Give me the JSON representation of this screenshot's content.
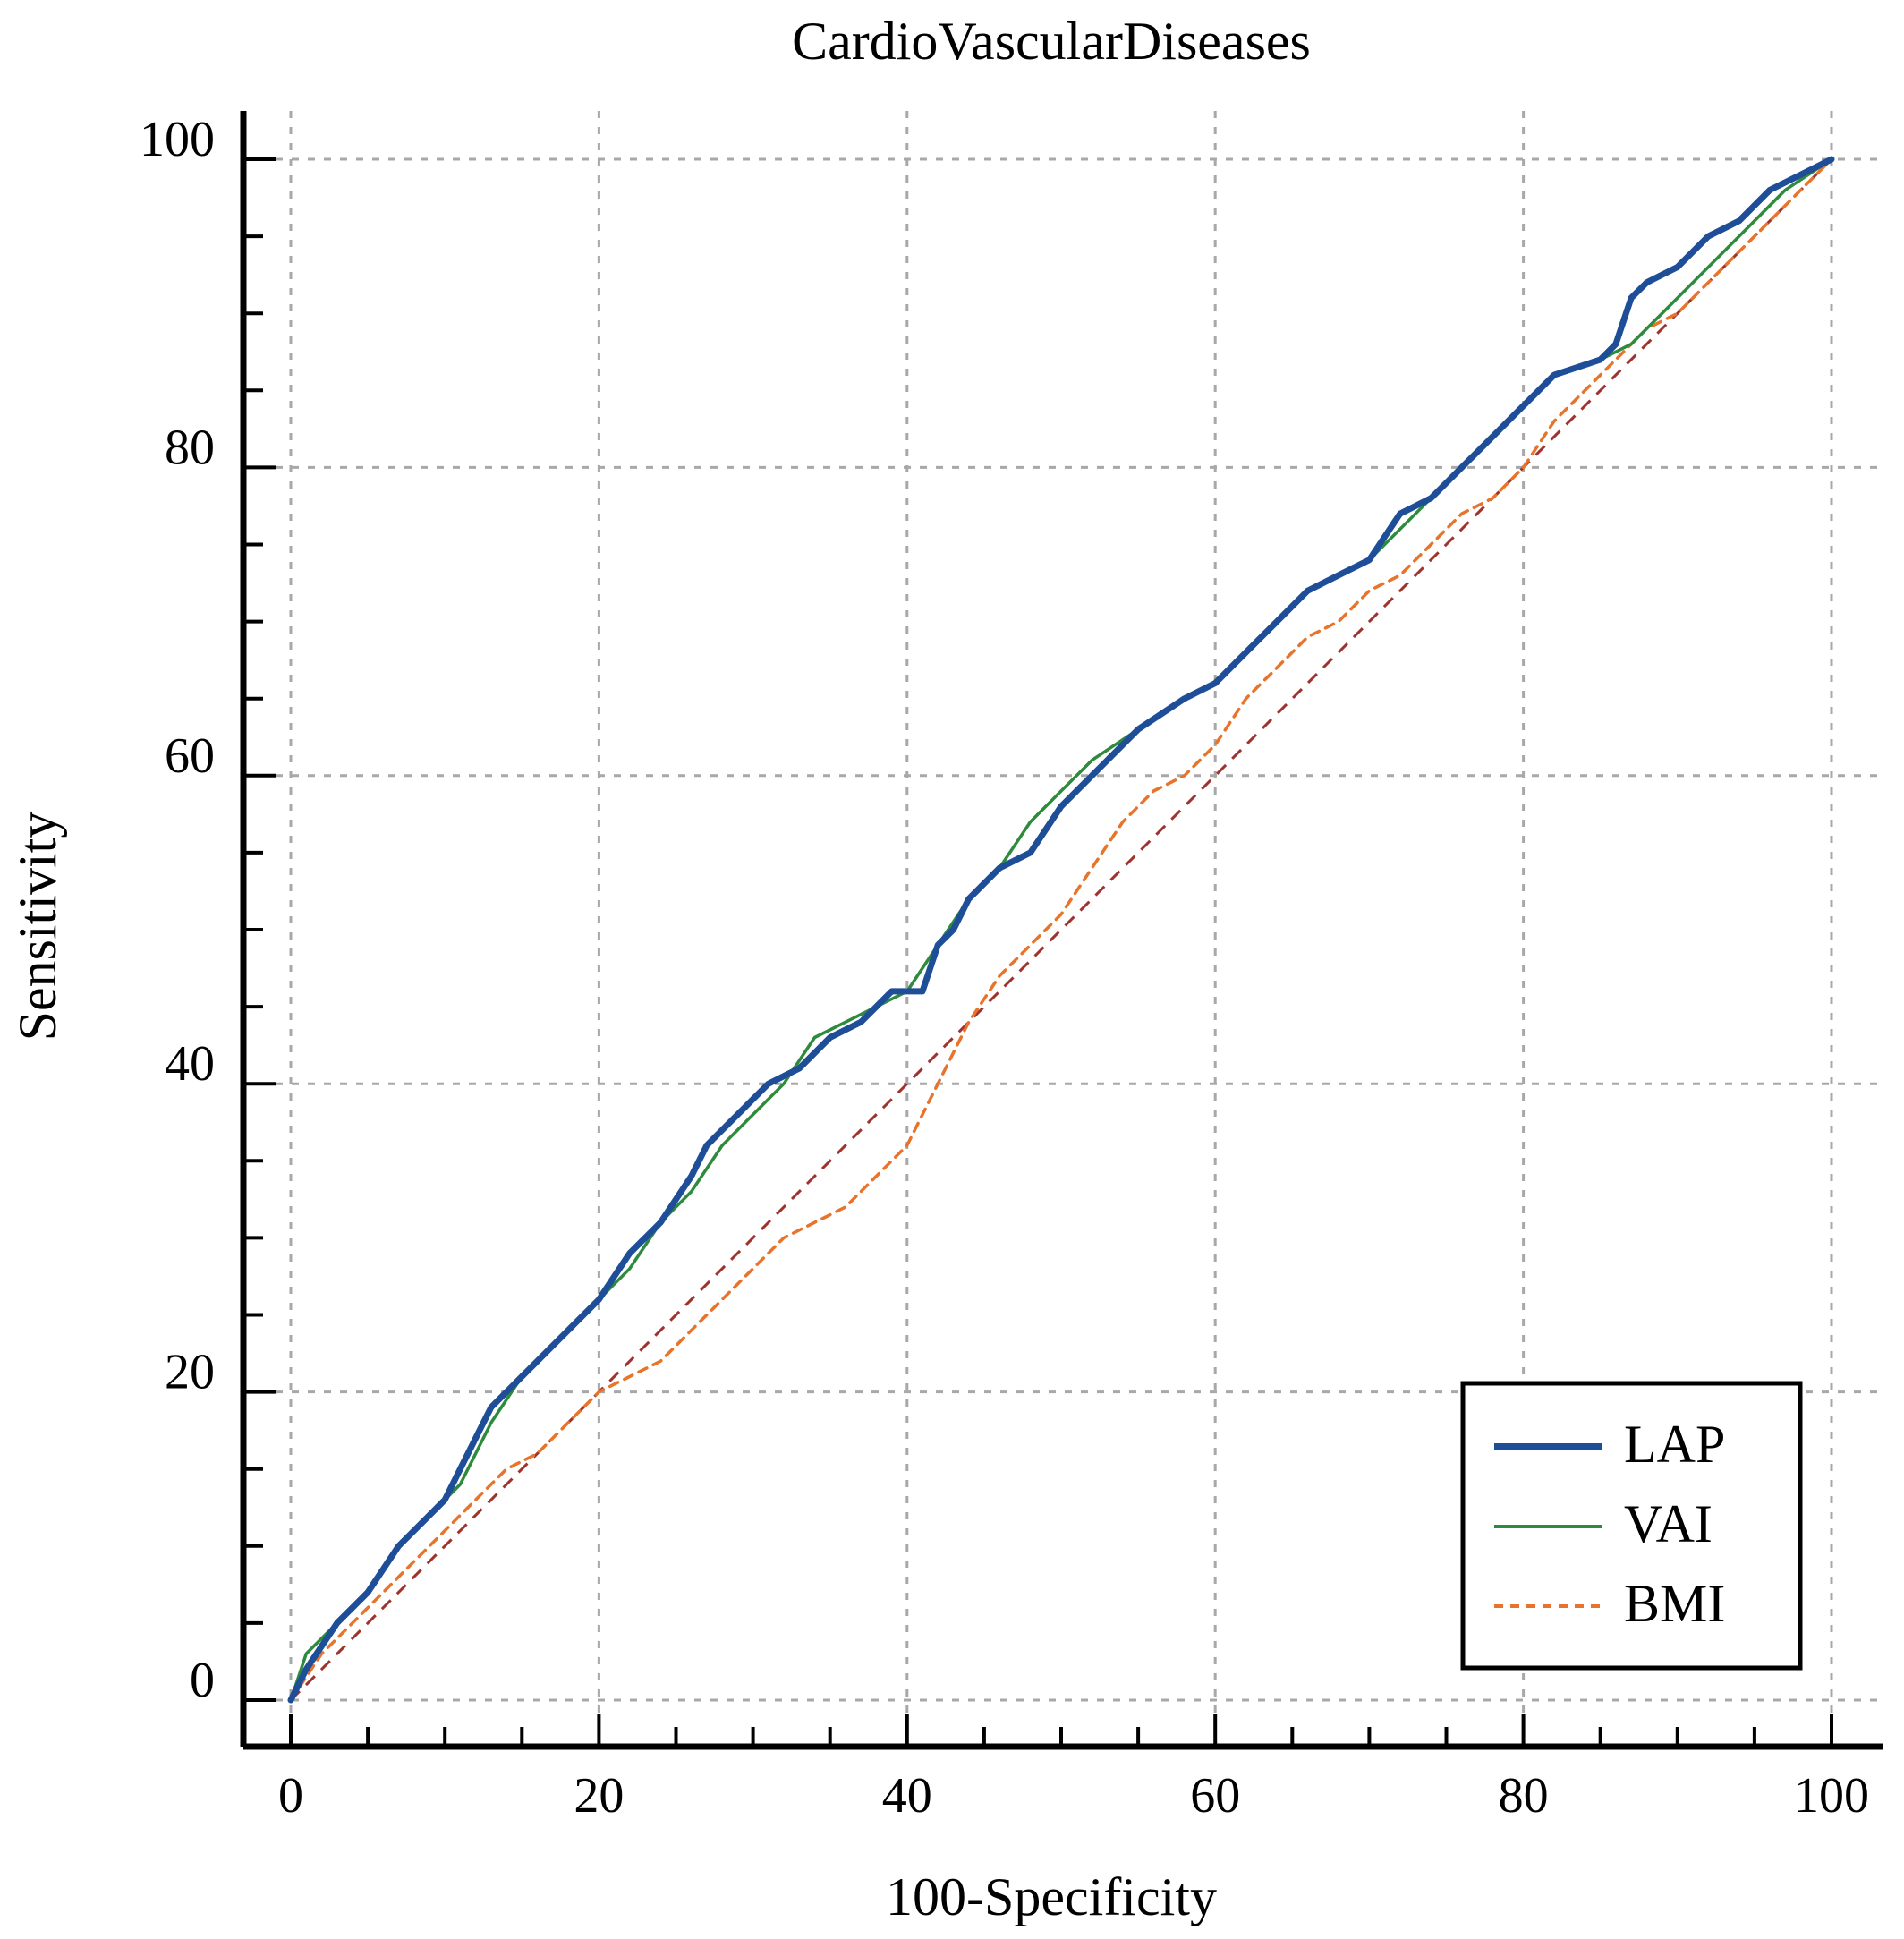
{
  "chart_data": {
    "type": "line",
    "title": "CardioVascularDiseases",
    "xlabel": "100-Specificity",
    "ylabel": "Sensitivity",
    "xlim": [
      0,
      100
    ],
    "ylim": [
      0,
      100
    ],
    "x_ticks": [
      "0",
      "20",
      "40",
      "60",
      "80",
      "100"
    ],
    "y_ticks": [
      "0",
      "20",
      "40",
      "60",
      "80",
      "100"
    ],
    "grid": true,
    "legend_position": "bottom-right",
    "series": [
      {
        "name": "LAP",
        "color": "#1f4e99",
        "style": "solid-thick",
        "x": [
          0,
          1,
          3,
          5,
          7,
          9,
          10,
          12,
          13,
          15,
          18,
          20,
          22,
          24,
          26,
          27,
          29,
          30,
          31,
          33,
          35,
          37,
          39,
          41,
          42,
          43,
          44,
          46,
          48,
          50,
          52,
          55,
          58,
          60,
          62,
          64,
          66,
          68,
          70,
          72,
          74,
          76,
          78,
          80,
          82,
          85,
          86,
          87,
          88,
          90,
          92,
          94,
          96,
          98,
          100
        ],
        "y": [
          0,
          2,
          5,
          7,
          10,
          12,
          13,
          17,
          19,
          21,
          24,
          26,
          29,
          31,
          34,
          36,
          38,
          39,
          40,
          41,
          43,
          44,
          46,
          46,
          49,
          50,
          52,
          54,
          55,
          58,
          60,
          63,
          65,
          66,
          68,
          70,
          72,
          73,
          74,
          77,
          78,
          80,
          82,
          84,
          86,
          87,
          88,
          91,
          92,
          93,
          95,
          96,
          98,
          99,
          100
        ]
      },
      {
        "name": "VAI",
        "color": "#2e8b3d",
        "style": "solid-thin",
        "x": [
          0,
          1,
          3,
          5,
          7,
          9,
          11,
          13,
          15,
          18,
          20,
          22,
          24,
          26,
          28,
          30,
          32,
          34,
          36,
          38,
          40,
          42,
          44,
          46,
          48,
          50,
          52,
          55,
          58,
          60,
          62,
          64,
          66,
          68,
          70,
          72,
          74,
          76,
          78,
          80,
          82,
          85,
          87,
          89,
          91,
          93,
          95,
          97,
          100
        ],
        "y": [
          0,
          3,
          5,
          7,
          10,
          12,
          14,
          18,
          21,
          24,
          26,
          28,
          31,
          33,
          36,
          38,
          40,
          43,
          44,
          45,
          46,
          49,
          52,
          54,
          57,
          59,
          61,
          63,
          65,
          66,
          68,
          70,
          72,
          73,
          74,
          76,
          78,
          80,
          82,
          84,
          86,
          87,
          88,
          90,
          92,
          94,
          96,
          98,
          100
        ]
      },
      {
        "name": "BMI",
        "color": "#e8742c",
        "style": "dashed",
        "x": [
          0,
          2,
          4,
          6,
          8,
          10,
          12,
          14,
          16,
          18,
          20,
          22,
          24,
          26,
          28,
          30,
          32,
          34,
          36,
          38,
          40,
          42,
          44,
          46,
          48,
          50,
          52,
          54,
          56,
          58,
          60,
          62,
          64,
          66,
          68,
          70,
          72,
          74,
          76,
          78,
          80,
          82,
          84,
          86,
          88,
          90,
          92,
          94,
          96,
          98,
          100
        ],
        "y": [
          0,
          3,
          5,
          7,
          9,
          11,
          13,
          15,
          16,
          18,
          20,
          21,
          22,
          24,
          26,
          28,
          30,
          31,
          32,
          34,
          36,
          40,
          44,
          47,
          49,
          51,
          54,
          57,
          59,
          60,
          62,
          65,
          67,
          69,
          70,
          72,
          73,
          75,
          77,
          78,
          80,
          83,
          85,
          87,
          89,
          90,
          92,
          94,
          96,
          98,
          100
        ]
      }
    ],
    "reference_line": {
      "x": [
        0,
        100
      ],
      "y": [
        0,
        100
      ],
      "color": "#a0322d",
      "style": "dashed"
    }
  }
}
